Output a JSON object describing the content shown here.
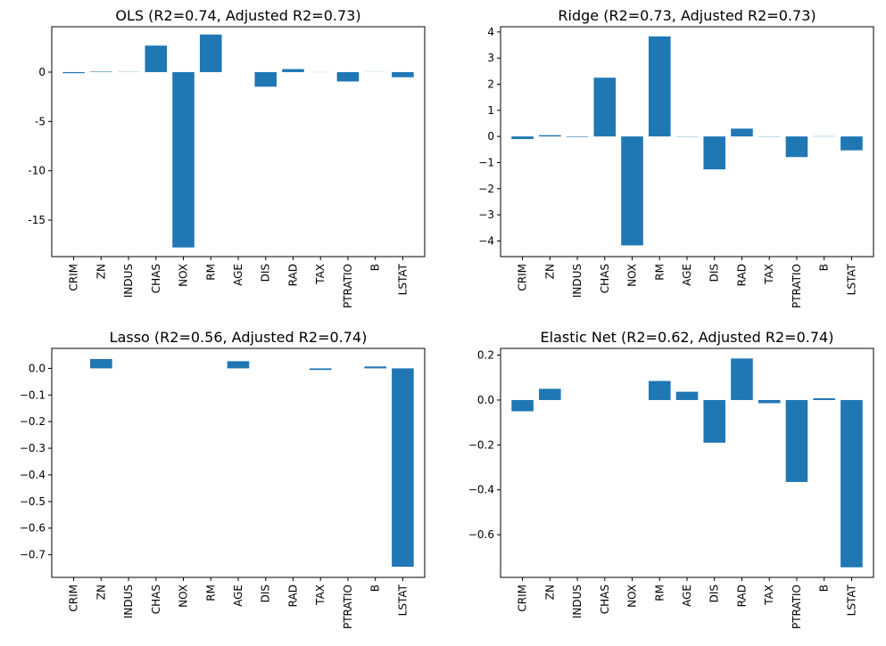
{
  "figure": {
    "colors": {
      "bar": "#1f77b4",
      "axes": "#000000",
      "background": "#ffffff"
    }
  },
  "chart_data": [
    {
      "type": "bar",
      "title": "OLS (R2=0.74, Adjusted R2=0.73)",
      "categories": [
        "CRIM",
        "ZN",
        "INDUS",
        "CHAS",
        "NOX",
        "RM",
        "AGE",
        "DIS",
        "RAD",
        "TAX",
        "PTRATIO",
        "B",
        "LSTAT"
      ],
      "values": [
        -0.11,
        0.05,
        0.02,
        2.69,
        -17.77,
        3.81,
        0.0,
        -1.48,
        0.31,
        -0.01,
        -0.95,
        0.01,
        -0.52
      ],
      "ylim": [
        -18.7,
        4.6
      ],
      "yticks": [
        0,
        -5,
        -10,
        -15
      ],
      "xlabel": "",
      "ylabel": ""
    },
    {
      "type": "bar",
      "title": "Ridge (R2=0.73, Adjusted R2=0.73)",
      "categories": [
        "CRIM",
        "ZN",
        "INDUS",
        "CHAS",
        "NOX",
        "RM",
        "AGE",
        "DIS",
        "RAD",
        "TAX",
        "PTRATIO",
        "B",
        "LSTAT"
      ],
      "values": [
        -0.1,
        0.05,
        -0.02,
        2.25,
        -4.17,
        3.83,
        -0.01,
        -1.26,
        0.3,
        -0.01,
        -0.79,
        0.01,
        -0.53
      ],
      "ylim": [
        -4.6,
        4.2
      ],
      "yticks": [
        4,
        3,
        2,
        1,
        0,
        -1,
        -2,
        -3,
        -4
      ],
      "ytick_labels": [
        "4",
        "3",
        "2",
        "1",
        "0",
        "−1",
        "−2",
        "−3",
        "−4"
      ],
      "xlabel": "",
      "ylabel": ""
    },
    {
      "type": "bar",
      "title": "Lasso (R2=0.56, Adjusted R2=0.74)",
      "categories": [
        "CRIM",
        "ZN",
        "INDUS",
        "CHAS",
        "NOX",
        "RM",
        "AGE",
        "DIS",
        "RAD",
        "TAX",
        "PTRATIO",
        "B",
        "LSTAT"
      ],
      "values": [
        0.0,
        0.035,
        0.0,
        0.0,
        0.0,
        0.0,
        0.027,
        0.0,
        0.0,
        -0.006,
        0.0,
        0.007,
        -0.745
      ],
      "ylim": [
        -0.785,
        0.075
      ],
      "yticks": [
        0.0,
        -0.1,
        -0.2,
        -0.3,
        -0.4,
        -0.5,
        -0.6,
        -0.7
      ],
      "ytick_labels": [
        "0.0",
        "−0.1",
        "−0.2",
        "−0.3",
        "−0.4",
        "−0.5",
        "−0.6",
        "−0.7"
      ],
      "xlabel": "",
      "ylabel": ""
    },
    {
      "type": "bar",
      "title": "Elastic Net (R2=0.62, Adjusted R2=0.74)",
      "categories": [
        "CRIM",
        "ZN",
        "INDUS",
        "CHAS",
        "NOX",
        "RM",
        "AGE",
        "DIS",
        "RAD",
        "TAX",
        "PTRATIO",
        "B",
        "LSTAT"
      ],
      "values": [
        -0.05,
        0.05,
        0.0,
        0.0,
        0.0,
        0.085,
        0.037,
        -0.19,
        0.185,
        -0.014,
        -0.365,
        0.008,
        -0.745
      ],
      "ylim": [
        -0.79,
        0.23
      ],
      "yticks": [
        0.2,
        0.0,
        -0.2,
        -0.4,
        -0.6
      ],
      "ytick_labels": [
        "0.2",
        "0.0",
        "−0.2",
        "−0.4",
        "−0.6"
      ],
      "xlabel": "",
      "ylabel": ""
    }
  ]
}
